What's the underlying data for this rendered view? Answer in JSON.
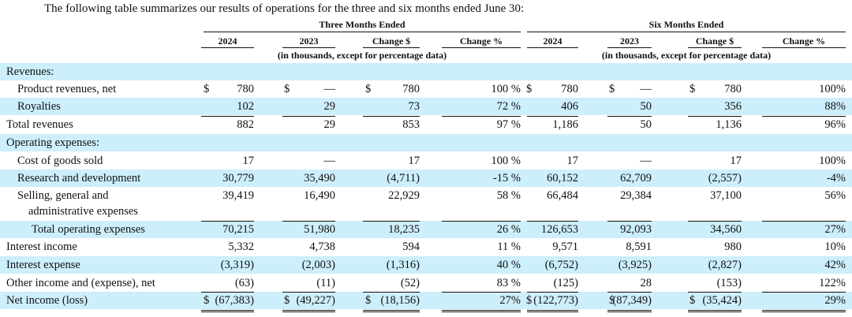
{
  "intro": "The following table summarizes our results of operations for the three and six months ended June 30:",
  "groups": [
    {
      "title": "Three Months Ended",
      "note": "(in thousands, except for percentage data)"
    },
    {
      "title": "Six Months Ended",
      "note": "(in thousands, except for percentage data)"
    }
  ],
  "columns": [
    "2024",
    "2023",
    "Change $",
    "Change %",
    "2024",
    "2023",
    "Change $",
    "Change %"
  ],
  "rows": [
    {
      "label": "Revenues:"
    },
    {
      "label": "Product revenues, net",
      "indent": 1,
      "currency": "$",
      "cells": [
        "780",
        "—",
        "780",
        "100 %",
        "780",
        "—",
        "780",
        "100%"
      ]
    },
    {
      "label": "Royalties",
      "indent": 1,
      "cells": [
        "102",
        "29",
        "73",
        "72 %",
        "406",
        "50",
        "356",
        "88%"
      ]
    },
    {
      "label": "Total revenues",
      "cells": [
        "882",
        "29",
        "853",
        "97 %",
        "1,186",
        "50",
        "1,136",
        "96%"
      ]
    },
    {
      "label": "Operating expenses:"
    },
    {
      "label": "Cost of goods sold",
      "indent": 1,
      "cells": [
        "17",
        "—",
        "17",
        "100 %",
        "17",
        "—",
        "17",
        "100%"
      ]
    },
    {
      "label": "Research and development",
      "indent": 1,
      "cells": [
        "30,779",
        "35,490",
        "(4,711)",
        "-15 %",
        "60,152",
        "62,709",
        "(2,557)",
        "-4%"
      ]
    },
    {
      "label": "Selling, general and",
      "label2": "administrative expenses",
      "indent": 1,
      "cells": [
        "39,419",
        "16,490",
        "22,929",
        "58 %",
        "66,484",
        "29,384",
        "37,100",
        "56%"
      ]
    },
    {
      "label": "Total operating expenses",
      "indent": 2,
      "cells": [
        "70,215",
        "51,980",
        "18,235",
        "26 %",
        "126,653",
        "92,093",
        "34,560",
        "27%"
      ]
    },
    {
      "label": "Interest income",
      "cells": [
        "5,332",
        "4,738",
        "594",
        "11 %",
        "9,571",
        "8,591",
        "980",
        "10%"
      ]
    },
    {
      "label": "Interest expense",
      "cells": [
        "(3,319)",
        "(2,003)",
        "(1,316)",
        "40 %",
        "(6,752)",
        "(3,925)",
        "(2,827)",
        "42%"
      ]
    },
    {
      "label": "Other income and (expense), net",
      "cells": [
        "(63)",
        "(11)",
        "(52)",
        "83 %",
        "(125)",
        "28",
        "(153)",
        "122%"
      ]
    },
    {
      "label": "Net income (loss)",
      "currency": "$",
      "cells": [
        "(67,383)",
        "(49,227)",
        "(18,156)",
        "27%",
        "(122,773)",
        "(87,349)",
        "(35,424)",
        "29%"
      ]
    }
  ]
}
